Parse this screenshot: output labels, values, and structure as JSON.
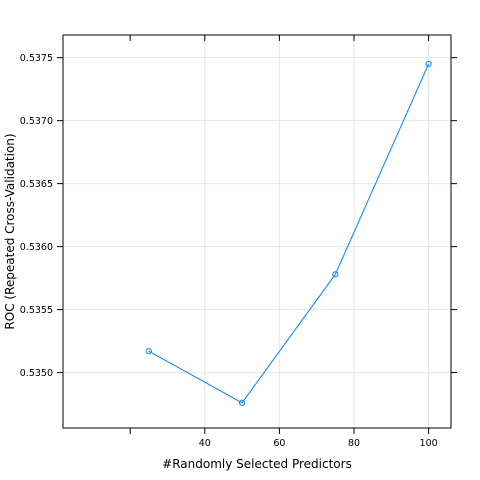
{
  "chart_data": {
    "type": "line",
    "xlabel": "#Randomly Selected Predictors",
    "ylabel": "ROC (Repeated Cross-Validation)",
    "x": [
      25,
      50,
      75,
      100
    ],
    "series": [
      {
        "values": [
          0.53517,
          0.53476,
          0.53578,
          0.53745
        ]
      }
    ],
    "xlim": [
      2,
      106
    ],
    "ylim": [
      0.53456,
      0.53768
    ],
    "x_ticks": [
      "40",
      "60",
      "80",
      "100"
    ],
    "x_tick_values": [
      40,
      60,
      80,
      100
    ],
    "x_minor_ticks": [
      20
    ],
    "y_ticks": [
      "0.5350",
      "0.5355",
      "0.5360",
      "0.5365",
      "0.5370",
      "0.5375"
    ],
    "y_tick_values": [
      0.535,
      0.5355,
      0.536,
      0.5365,
      0.537,
      0.5375
    ],
    "grid": true,
    "series_color": "#0080ff",
    "grid_color": "#e6e6e6",
    "frame_color": "#000000"
  }
}
